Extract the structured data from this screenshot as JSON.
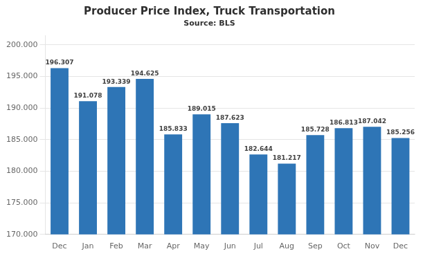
{
  "chart_data": {
    "type": "bar",
    "title": "Producer Price Index, Truck Transportation",
    "subtitle": "Source: BLS",
    "categories": [
      "Dec",
      "Jan",
      "Feb",
      "Mar",
      "Apr",
      "May",
      "Jun",
      "Jul",
      "Aug",
      "Sep",
      "Oct",
      "Nov",
      "Dec"
    ],
    "values": [
      196.307,
      191.078,
      193.339,
      194.625,
      185.833,
      189.015,
      187.623,
      182.644,
      181.217,
      185.728,
      186.813,
      187.042,
      185.256
    ],
    "color": "#2E75B6",
    "ylim": [
      170.0,
      201.5
    ],
    "yticks": [
      {
        "value": 170,
        "label": "170.000"
      },
      {
        "value": 175,
        "label": "175.000"
      },
      {
        "value": 180,
        "label": "180.000"
      },
      {
        "value": 185,
        "label": "185.000"
      },
      {
        "value": 190,
        "label": "190.000"
      },
      {
        "value": 195,
        "label": "195.000"
      },
      {
        "value": 200,
        "label": "200.000"
      }
    ],
    "grid": true,
    "data_labels": true
  }
}
